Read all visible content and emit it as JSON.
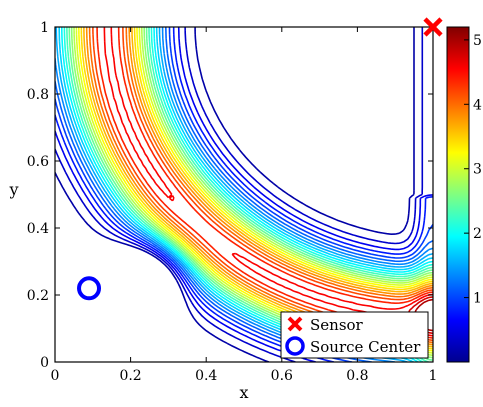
{
  "chart_data": {
    "type": "contour",
    "xlabel": "x",
    "ylabel": "y",
    "xlim": [
      0,
      1
    ],
    "ylim": [
      0,
      1
    ],
    "xticks": [
      "0",
      "0.2",
      "0.4",
      "0.6",
      "0.8",
      "1"
    ],
    "yticks": [
      "0",
      "0.2",
      "0.4",
      "0.6",
      "0.8",
      "1"
    ],
    "colorbar": {
      "min": 0,
      "max": 5.2,
      "ticks": [
        "1",
        "2",
        "3",
        "4",
        "5"
      ],
      "colormap": "jet"
    },
    "markers": [
      {
        "name": "Sensor",
        "x": 1.0,
        "y": 1.0,
        "symbol": "x",
        "color": "#ff0000"
      },
      {
        "name": "Source Center",
        "x": 0.09,
        "y": 0.22,
        "symbol": "circle",
        "color": "#0000ff"
      }
    ],
    "local_minimum": {
      "x": 0.26,
      "y": 0.27
    },
    "legend": {
      "placement": "bottom-right",
      "entries": [
        "Sensor",
        "Source Center"
      ]
    }
  }
}
